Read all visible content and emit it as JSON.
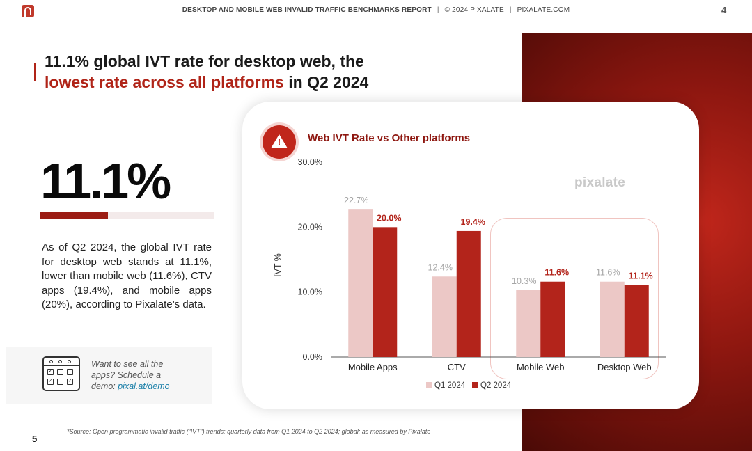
{
  "header": {
    "report_title": "DESKTOP AND MOBILE WEB INVALID TRAFFIC BENCHMARKS REPORT",
    "separator": "|",
    "copyright": "© 2024 PIXALATE",
    "site": "PIXALATE.COM",
    "page_number": "4"
  },
  "title": {
    "line1": "11.1% global IVT rate for desktop web, the",
    "highlight": "lowest rate across all platforms",
    "rest": " in Q2 2024"
  },
  "stat": {
    "value": "11.1%",
    "fill_fraction": 0.391,
    "description": "As of Q2 2024, the global IVT rate for desktop web stands at 11.1%, lower than mobile web (11.6%), CTV apps (19.4%), and mobile apps (20%), according to Pixalate’s data."
  },
  "demo": {
    "text": "Want to see all the apps? Schedule a demo: ",
    "link": "pixal.at/demo"
  },
  "chart_card": {
    "warning_mark": "!",
    "watermark": "pixalate"
  },
  "chart_data": {
    "type": "bar",
    "title": "Web IVT Rate vs Other platforms",
    "ylabel": "IVT %",
    "xlabel": "",
    "ylim": [
      0,
      30
    ],
    "yticks": [
      0,
      10,
      20,
      30
    ],
    "ytick_labels": [
      "0.0%",
      "10.0%",
      "20.0%",
      "30.0%"
    ],
    "categories": [
      "Mobile Apps",
      "CTV",
      "Mobile Web",
      "Desktop Web"
    ],
    "series": [
      {
        "name": "Q1 2024",
        "color": "#ecc8c6",
        "values": [
          22.7,
          12.4,
          10.3,
          11.6
        ],
        "labels": [
          "22.7%",
          "12.4%",
          "10.3%",
          "11.6%"
        ],
        "label_color": "#a6a6a6"
      },
      {
        "name": "Q2 2024",
        "color": "#b3241b",
        "values": [
          20.0,
          19.4,
          11.6,
          11.1
        ],
        "labels": [
          "20.0%",
          "19.4%",
          "11.6%",
          "11.1%"
        ],
        "label_color": "#b3241b"
      }
    ],
    "highlighted_categories": [
      "Mobile Web",
      "Desktop Web"
    ],
    "legend_position": "bottom-center"
  },
  "source": "*Source: Open programmatic invalid traffic (“IVT”) trends; quarterly data from Q1 2024 to Q2 2024; global; as measured by Pixalate",
  "slide_number": "5"
}
